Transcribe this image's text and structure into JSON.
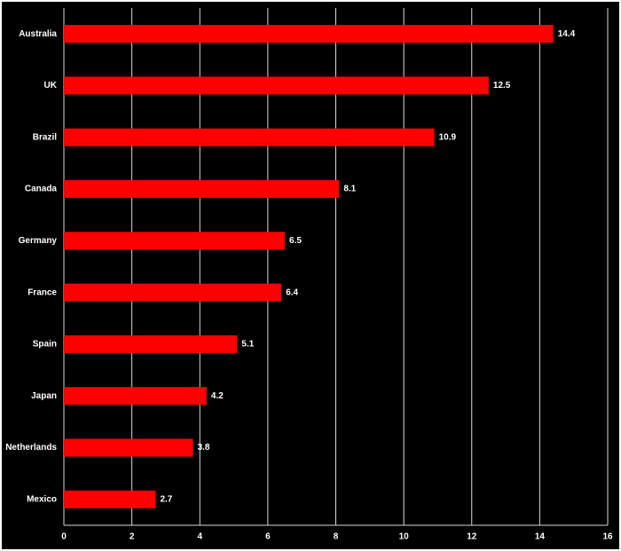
{
  "chart_data": {
    "type": "bar",
    "orientation": "horizontal",
    "categories": [
      "Australia",
      "UK",
      "Brazil",
      "Canada",
      "Germany",
      "France",
      "Spain",
      "Japan",
      "Netherlands",
      "Mexico"
    ],
    "values": [
      14.4,
      12.5,
      10.9,
      8.1,
      6.5,
      6.4,
      5.1,
      4.2,
      3.8,
      2.7
    ],
    "color": "#ff0000",
    "xlim": [
      0,
      16
    ],
    "xticks": [
      0,
      2,
      4,
      6,
      8,
      10,
      12,
      14,
      16
    ],
    "grid": true
  }
}
